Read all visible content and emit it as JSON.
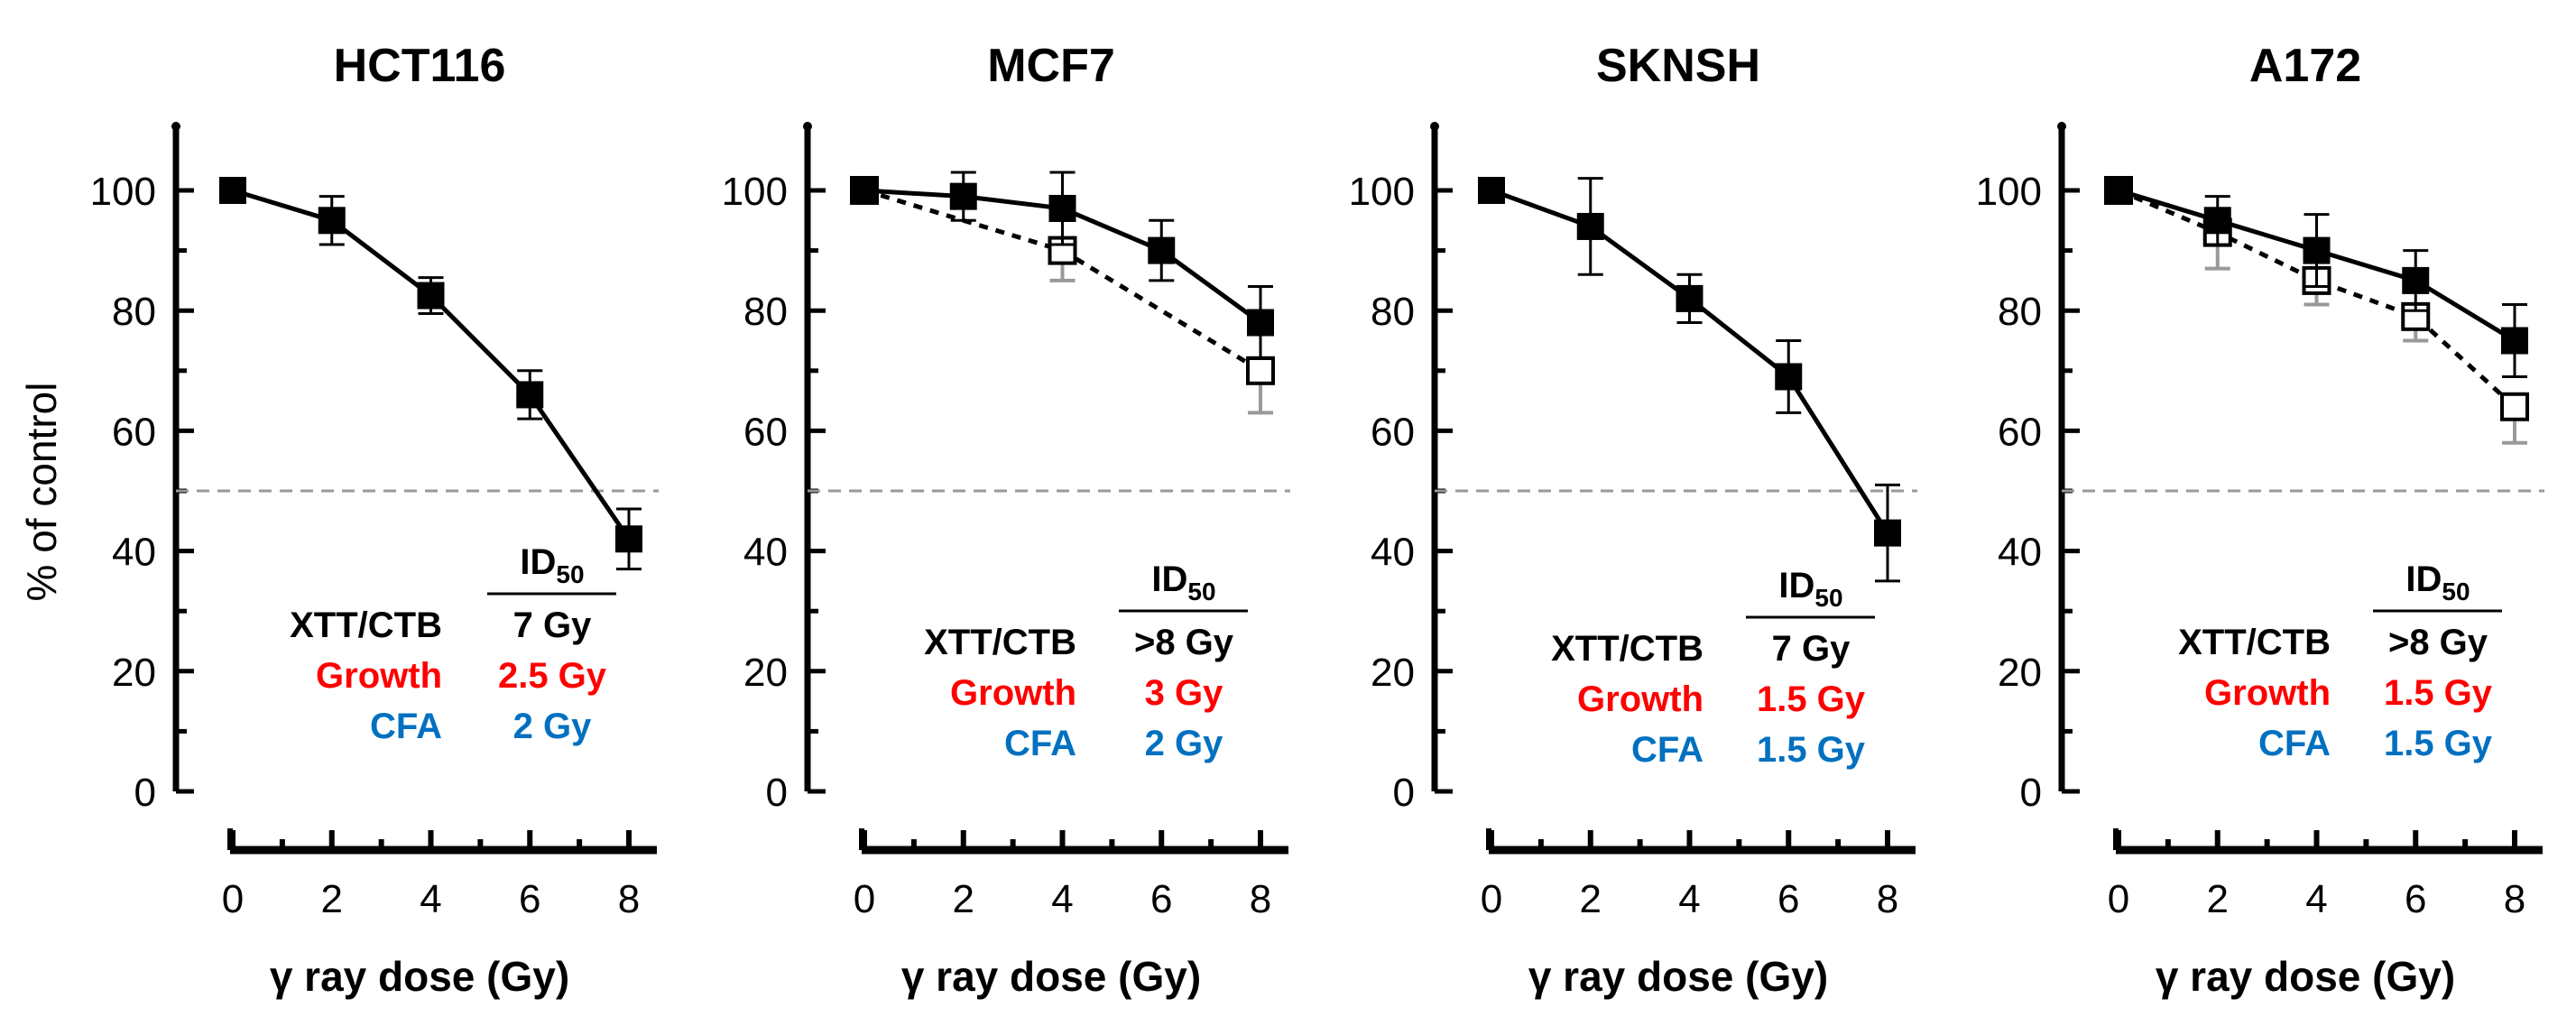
{
  "figure": {
    "ylabel": "% of control",
    "xlabel": "γ ray dose (Gy)",
    "id50_header": "ID",
    "id50_subscript": "50",
    "colors": {
      "black": "#000000",
      "red": "#ff0000",
      "blue": "#0070c0",
      "reference": "#999999",
      "open_error": "#999999"
    }
  },
  "chart_data": [
    {
      "type": "line",
      "title": "HCT116",
      "xlabel": "γ ray dose (Gy)",
      "ylabel": "% of control",
      "xlim": [
        0,
        8
      ],
      "ylim": [
        0,
        110
      ],
      "xticks": [
        0,
        2,
        4,
        6,
        8
      ],
      "yticks": [
        0,
        20,
        40,
        60,
        80,
        100
      ],
      "reference_line": 50,
      "series": [
        {
          "name": "XTT/CTB",
          "marker": "filled-square",
          "line": "solid",
          "x": [
            0,
            2,
            4,
            6,
            8
          ],
          "y": [
            100,
            95,
            82.5,
            66,
            42
          ],
          "err": [
            0,
            4,
            3,
            4,
            5
          ]
        }
      ],
      "id50_table": [
        {
          "assay": "XTT/CTB",
          "value": "7 Gy",
          "color": "#000000"
        },
        {
          "assay": "Growth",
          "value": "2.5 Gy",
          "color": "#ff0000"
        },
        {
          "assay": "CFA",
          "value": "2 Gy",
          "color": "#0070c0"
        }
      ]
    },
    {
      "type": "line",
      "title": "MCF7",
      "xlabel": "γ ray dose (Gy)",
      "ylabel": "% of control",
      "xlim": [
        0,
        8
      ],
      "ylim": [
        0,
        110
      ],
      "xticks": [
        0,
        2,
        4,
        6,
        8
      ],
      "yticks": [
        0,
        20,
        40,
        60,
        80,
        100
      ],
      "reference_line": 50,
      "series": [
        {
          "name": "XTT/CTB",
          "marker": "filled-square",
          "line": "solid",
          "x": [
            0,
            2,
            4,
            6,
            8
          ],
          "y": [
            100,
            99,
            97,
            90,
            78
          ],
          "err": [
            0,
            4,
            6,
            5,
            6
          ]
        },
        {
          "name": "open",
          "marker": "open-square",
          "line": "dashed",
          "x": [
            0,
            4,
            8
          ],
          "y": [
            100,
            90,
            70
          ],
          "err": [
            0,
            5,
            7
          ]
        }
      ],
      "id50_table": [
        {
          "assay": "XTT/CTB",
          "value": ">8 Gy",
          "color": "#000000"
        },
        {
          "assay": "Growth",
          "value": "3 Gy",
          "color": "#ff0000"
        },
        {
          "assay": "CFA",
          "value": "2 Gy",
          "color": "#0070c0"
        }
      ]
    },
    {
      "type": "line",
      "title": "SKNSH",
      "xlabel": "γ ray dose (Gy)",
      "ylabel": "% of control",
      "xlim": [
        0,
        8
      ],
      "ylim": [
        0,
        110
      ],
      "xticks": [
        0,
        2,
        4,
        6,
        8
      ],
      "yticks": [
        0,
        20,
        40,
        60,
        80,
        100
      ],
      "reference_line": 50,
      "series": [
        {
          "name": "XTT/CTB",
          "marker": "filled-square",
          "line": "solid",
          "x": [
            0,
            2,
            4,
            6,
            8
          ],
          "y": [
            100,
            94,
            82,
            69,
            43
          ],
          "err": [
            0,
            8,
            4,
            6,
            8
          ]
        }
      ],
      "id50_table": [
        {
          "assay": "XTT/CTB",
          "value": "7 Gy",
          "color": "#000000"
        },
        {
          "assay": "Growth",
          "value": "1.5 Gy",
          "color": "#ff0000"
        },
        {
          "assay": "CFA",
          "value": "1.5 Gy",
          "color": "#0070c0"
        }
      ]
    },
    {
      "type": "line",
      "title": "A172",
      "xlabel": "γ ray dose (Gy)",
      "ylabel": "% of control",
      "xlim": [
        0,
        8
      ],
      "ylim": [
        0,
        110
      ],
      "xticks": [
        0,
        2,
        4,
        6,
        8
      ],
      "yticks": [
        0,
        20,
        40,
        60,
        80,
        100
      ],
      "reference_line": 50,
      "series": [
        {
          "name": "XTT/CTB",
          "marker": "filled-square",
          "line": "solid",
          "x": [
            0,
            2,
            4,
            6,
            8
          ],
          "y": [
            100,
            95,
            90,
            85,
            75
          ],
          "err": [
            0,
            4,
            6,
            5,
            6
          ]
        },
        {
          "name": "open",
          "marker": "open-square",
          "line": "dashed",
          "x": [
            0,
            2,
            4,
            6,
            8
          ],
          "y": [
            100,
            93,
            85,
            79,
            64
          ],
          "err": [
            0,
            6,
            4,
            4,
            6
          ]
        }
      ],
      "id50_table": [
        {
          "assay": "XTT/CTB",
          "value": ">8 Gy",
          "color": "#000000"
        },
        {
          "assay": "Growth",
          "value": "1.5 Gy",
          "color": "#ff0000"
        },
        {
          "assay": "CFA",
          "value": "1.5 Gy",
          "color": "#0070c0"
        }
      ]
    }
  ]
}
